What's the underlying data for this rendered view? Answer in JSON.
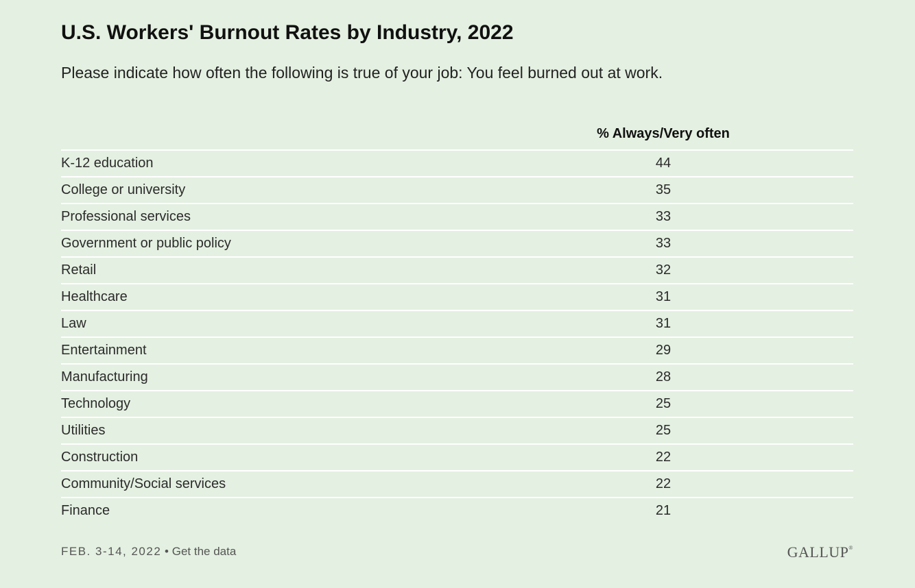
{
  "title": "U.S. Workers' Burnout Rates by Industry, 2022",
  "subtitle": "Please indicate how often the following is true of your job: You feel burned out at work.",
  "footer": {
    "date": "FEB. 3-14, 2022",
    "bullet": "•",
    "link": "Get the data",
    "logo": "GALLUP",
    "logo_mark": "®"
  },
  "chart_data": {
    "type": "table",
    "column_header": "% Always/Very often",
    "rows": [
      {
        "label": "K-12 education",
        "value": "44"
      },
      {
        "label": "College or university",
        "value": "35"
      },
      {
        "label": "Professional services",
        "value": "33"
      },
      {
        "label": "Government or public policy",
        "value": "33"
      },
      {
        "label": "Retail",
        "value": "32"
      },
      {
        "label": "Healthcare",
        "value": "31"
      },
      {
        "label": "Law",
        "value": "31"
      },
      {
        "label": "Entertainment",
        "value": "29"
      },
      {
        "label": "Manufacturing",
        "value": "28"
      },
      {
        "label": "Technology",
        "value": "25"
      },
      {
        "label": "Utilities",
        "value": "25"
      },
      {
        "label": "Construction",
        "value": "22"
      },
      {
        "label": "Community/Social services",
        "value": "22"
      },
      {
        "label": "Finance",
        "value": "21"
      }
    ]
  }
}
